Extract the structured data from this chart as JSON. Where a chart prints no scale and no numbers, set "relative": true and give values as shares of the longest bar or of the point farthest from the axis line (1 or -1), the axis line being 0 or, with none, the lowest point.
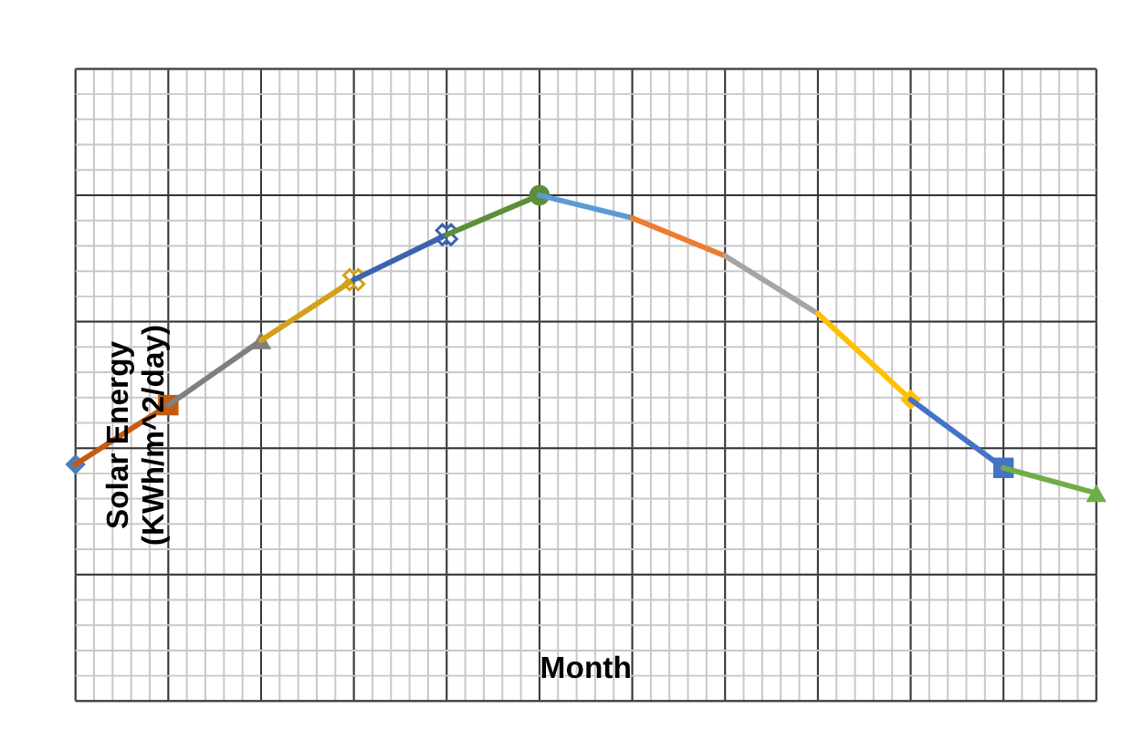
{
  "chart_data": {
    "type": "line",
    "xlabel": "Month",
    "ylabel": "Solar Energy\n(KWh/m^2/day)",
    "relative": true,
    "grid": true,
    "categories": [
      null,
      null,
      null,
      null,
      null,
      null,
      null,
      null,
      null,
      null,
      null,
      null
    ],
    "series": [
      {
        "color": "#4a7ebb",
        "marker": "diamond",
        "values": [
          0.468,
          null,
          null,
          null,
          null,
          null,
          null,
          null,
          null,
          null,
          null,
          null
        ]
      },
      {
        "color": "#c55a11",
        "marker": "square",
        "values": [
          0.468,
          0.585,
          null,
          null,
          null,
          null,
          null,
          null,
          null,
          null,
          null,
          null
        ]
      },
      {
        "color": "#7f7f7f",
        "marker": "triangle",
        "values": [
          null,
          0.585,
          0.713,
          null,
          null,
          null,
          null,
          null,
          null,
          null,
          null,
          null
        ]
      },
      {
        "color": "#d4a017",
        "marker": "cross",
        "values": [
          null,
          null,
          0.713,
          0.833,
          null,
          null,
          null,
          null,
          null,
          null,
          null,
          null
        ]
      },
      {
        "color": "#3a64b0",
        "marker": "cross",
        "values": [
          null,
          null,
          null,
          0.833,
          0.922,
          null,
          null,
          null,
          null,
          null,
          null,
          null
        ]
      },
      {
        "color": "#5b8f3a",
        "marker": "circle",
        "values": [
          null,
          null,
          null,
          null,
          0.922,
          1,
          null,
          null,
          null,
          null,
          null,
          null
        ]
      },
      {
        "color": "#5b9bd5",
        "marker": "none",
        "values": [
          null,
          null,
          null,
          null,
          null,
          1,
          0.955,
          null,
          null,
          null,
          null,
          null
        ]
      },
      {
        "color": "#ed7d31",
        "marker": "none",
        "values": [
          null,
          null,
          null,
          null,
          null,
          null,
          0.955,
          0.88,
          null,
          null,
          null,
          null
        ]
      },
      {
        "color": "#a5a5a5",
        "marker": "none",
        "values": [
          null,
          null,
          null,
          null,
          null,
          null,
          null,
          0.88,
          0.766,
          null,
          null,
          null
        ]
      },
      {
        "color": "#ffc000",
        "marker": "diamond",
        "values": [
          null,
          null,
          null,
          null,
          null,
          null,
          null,
          null,
          0.766,
          0.596,
          null,
          null
        ]
      },
      {
        "color": "#4472c4",
        "marker": "square",
        "values": [
          null,
          null,
          null,
          null,
          null,
          null,
          null,
          null,
          null,
          0.596,
          0.461,
          null
        ]
      },
      {
        "color": "#70ad47",
        "marker": "triangle",
        "values": [
          null,
          null,
          null,
          null,
          null,
          null,
          null,
          null,
          null,
          null,
          0.461,
          0.411
        ]
      }
    ]
  }
}
